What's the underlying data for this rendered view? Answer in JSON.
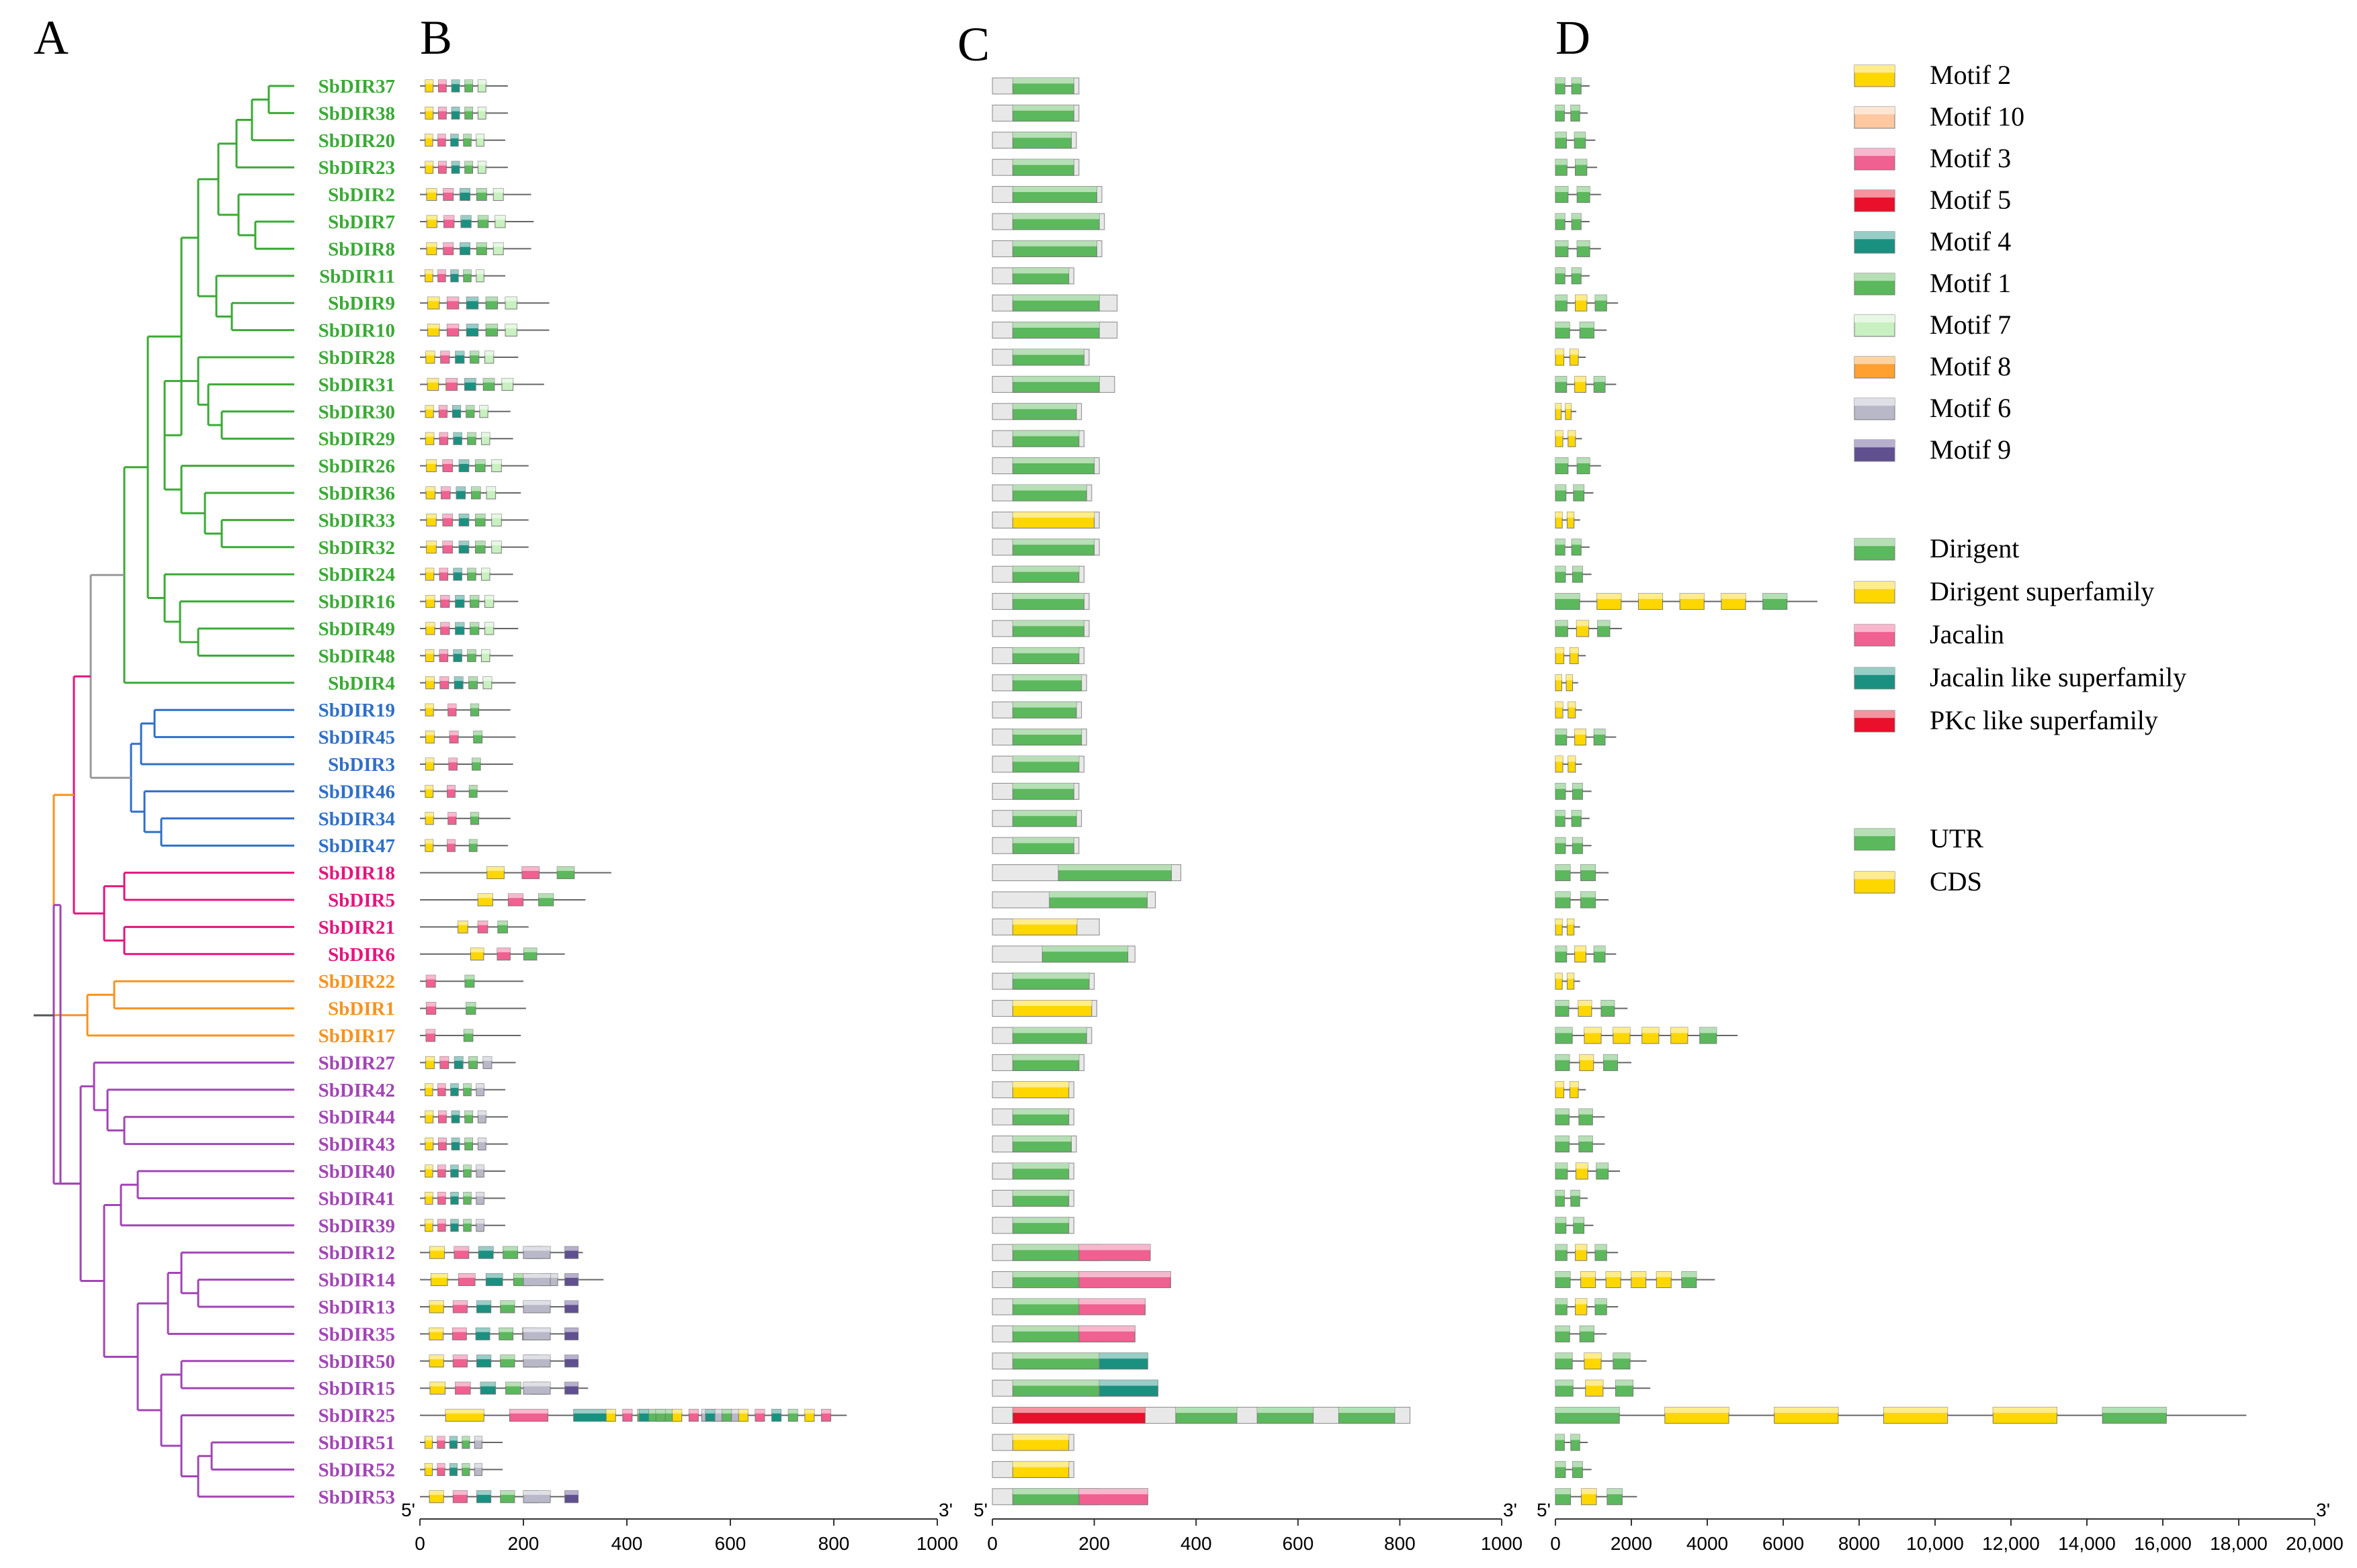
{
  "panels": {
    "a": "A",
    "b": "B",
    "c": "C",
    "d": "D"
  },
  "colors": {
    "green": "#3aaa35",
    "blue": "#2f6fc8",
    "pink": "#e4157d",
    "orange": "#f7931e",
    "purple": "#a245b5",
    "grey": "#999999",
    "motif2": "#ffd700",
    "motif10": "#ffc8a0",
    "motif3": "#f06090",
    "motif5": "#e8102a",
    "motif4": "#1a9080",
    "motif1": "#5cb85c",
    "motif7": "#c8f0c0",
    "motif8": "#ffa030",
    "motif6": "#b8b8c8",
    "motif9": "#605090"
  },
  "genes": [
    {
      "name": "SbDIR37",
      "clade": "green"
    },
    {
      "name": "SbDIR38",
      "clade": "green"
    },
    {
      "name": "SbDIR20",
      "clade": "green"
    },
    {
      "name": "SbDIR23",
      "clade": "green"
    },
    {
      "name": "SbDIR2",
      "clade": "green"
    },
    {
      "name": "SbDIR7",
      "clade": "green"
    },
    {
      "name": "SbDIR8",
      "clade": "green"
    },
    {
      "name": "SbDIR11",
      "clade": "green"
    },
    {
      "name": "SbDIR9",
      "clade": "green"
    },
    {
      "name": "SbDIR10",
      "clade": "green"
    },
    {
      "name": "SbDIR28",
      "clade": "green"
    },
    {
      "name": "SbDIR31",
      "clade": "green"
    },
    {
      "name": "SbDIR30",
      "clade": "green"
    },
    {
      "name": "SbDIR29",
      "clade": "green"
    },
    {
      "name": "SbDIR26",
      "clade": "green"
    },
    {
      "name": "SbDIR36",
      "clade": "green"
    },
    {
      "name": "SbDIR33",
      "clade": "green"
    },
    {
      "name": "SbDIR32",
      "clade": "green"
    },
    {
      "name": "SbDIR24",
      "clade": "green"
    },
    {
      "name": "SbDIR16",
      "clade": "green"
    },
    {
      "name": "SbDIR49",
      "clade": "green"
    },
    {
      "name": "SbDIR48",
      "clade": "green"
    },
    {
      "name": "SbDIR4",
      "clade": "green"
    },
    {
      "name": "SbDIR19",
      "clade": "blue"
    },
    {
      "name": "SbDIR45",
      "clade": "blue"
    },
    {
      "name": "SbDIR3",
      "clade": "blue"
    },
    {
      "name": "SbDIR46",
      "clade": "blue"
    },
    {
      "name": "SbDIR34",
      "clade": "blue"
    },
    {
      "name": "SbDIR47",
      "clade": "blue"
    },
    {
      "name": "SbDIR18",
      "clade": "pink"
    },
    {
      "name": "SbDIR5",
      "clade": "pink"
    },
    {
      "name": "SbDIR21",
      "clade": "pink"
    },
    {
      "name": "SbDIR6",
      "clade": "pink"
    },
    {
      "name": "SbDIR22",
      "clade": "orange"
    },
    {
      "name": "SbDIR1",
      "clade": "orange"
    },
    {
      "name": "SbDIR17",
      "clade": "orange"
    },
    {
      "name": "SbDIR27",
      "clade": "purple"
    },
    {
      "name": "SbDIR42",
      "clade": "purple"
    },
    {
      "name": "SbDIR44",
      "clade": "purple"
    },
    {
      "name": "SbDIR43",
      "clade": "purple"
    },
    {
      "name": "SbDIR40",
      "clade": "purple"
    },
    {
      "name": "SbDIR41",
      "clade": "purple"
    },
    {
      "name": "SbDIR39",
      "clade": "purple"
    },
    {
      "name": "SbDIR12",
      "clade": "purple"
    },
    {
      "name": "SbDIR14",
      "clade": "purple"
    },
    {
      "name": "SbDIR13",
      "clade": "purple"
    },
    {
      "name": "SbDIR35",
      "clade": "purple"
    },
    {
      "name": "SbDIR50",
      "clade": "purple"
    },
    {
      "name": "SbDIR15",
      "clade": "purple"
    },
    {
      "name": "SbDIR25",
      "clade": "purple"
    },
    {
      "name": "SbDIR51",
      "clade": "purple"
    },
    {
      "name": "SbDIR52",
      "clade": "purple"
    },
    {
      "name": "SbDIR53",
      "clade": "purple"
    }
  ],
  "motif_legend": [
    {
      "label": "Motif 2",
      "color": "#ffd700"
    },
    {
      "label": "Motif 10",
      "color": "#ffc8a0"
    },
    {
      "label": "Motif 3",
      "color": "#f06090"
    },
    {
      "label": "Motif 5",
      "color": "#e8102a"
    },
    {
      "label": "Motif 4",
      "color": "#1a9080"
    },
    {
      "label": "Motif 1",
      "color": "#5cb85c"
    },
    {
      "label": "Motif 7",
      "color": "#c8f0c0"
    },
    {
      "label": "Motif 8",
      "color": "#ffa030"
    },
    {
      "label": "Motif 6",
      "color": "#b8b8c8"
    },
    {
      "label": "Motif 9",
      "color": "#605090"
    }
  ],
  "domain_legend": [
    {
      "label": "Dirigent",
      "color": "#5cb85c"
    },
    {
      "label": "Dirigent superfamily",
      "color": "#ffd700"
    },
    {
      "label": "Jacalin",
      "color": "#f06090"
    },
    {
      "label": "Jacalin like superfamily",
      "color": "#1a9080"
    },
    {
      "label": "PKc like superfamily",
      "color": "#e8102a"
    }
  ],
  "structure_legend": [
    {
      "label": "UTR",
      "color": "#5cb85c"
    },
    {
      "label": "CDS",
      "color": "#ffd700"
    }
  ],
  "axes": {
    "five_prime": "5'",
    "three_prime": "3'",
    "b_ticks": [
      "0",
      "200",
      "400",
      "600",
      "800",
      "1000"
    ],
    "c_ticks": [
      "0",
      "200",
      "400",
      "600",
      "800",
      "1000"
    ],
    "d_ticks": [
      "0",
      "2000",
      "4000",
      "6000",
      "8000",
      "10,000",
      "12,000",
      "14,000",
      "16,000",
      "18,000",
      "20,000"
    ]
  },
  "chart_data": {
    "type": "gene-structure-diagram",
    "b_protein_lengths_aa": [
      170,
      170,
      165,
      170,
      215,
      220,
      215,
      165,
      250,
      250,
      190,
      240,
      175,
      180,
      210,
      195,
      210,
      210,
      180,
      190,
      190,
      180,
      185,
      175,
      185,
      180,
      170,
      175,
      170,
      370,
      320,
      210,
      280,
      200,
      205,
      195,
      185,
      165,
      170,
      170,
      165,
      165,
      165,
      315,
      355,
      305,
      300,
      305,
      325,
      825,
      160,
      160,
      305
    ],
    "c_protein_lengths_aa": [
      170,
      170,
      165,
      170,
      215,
      220,
      215,
      160,
      245,
      245,
      190,
      240,
      175,
      180,
      210,
      195,
      210,
      210,
      180,
      190,
      190,
      180,
      185,
      175,
      185,
      180,
      170,
      175,
      170,
      370,
      320,
      210,
      280,
      200,
      205,
      195,
      180,
      160,
      160,
      165,
      160,
      160,
      160,
      310,
      350,
      300,
      280,
      305,
      325,
      820,
      160,
      160,
      305
    ],
    "d_gene_lengths_bp": [
      900,
      850,
      1050,
      1100,
      1200,
      900,
      1200,
      900,
      1650,
      1350,
      800,
      1600,
      550,
      700,
      1200,
      1000,
      650,
      900,
      950,
      6900,
      1750,
      800,
      600,
      700,
      1600,
      700,
      950,
      900,
      950,
      1400,
      1400,
      650,
      1600,
      650,
      1900,
      4800,
      2000,
      800,
      1300,
      1300,
      1700,
      850,
      1000,
      1650,
      4200,
      1650,
      1350,
      2400,
      2500,
      18200,
      850,
      950,
      2150
    ],
    "b_xlim": [
      0,
      1000
    ],
    "c_xlim": [
      0,
      1000
    ],
    "d_xlim": [
      0,
      20000
    ]
  }
}
